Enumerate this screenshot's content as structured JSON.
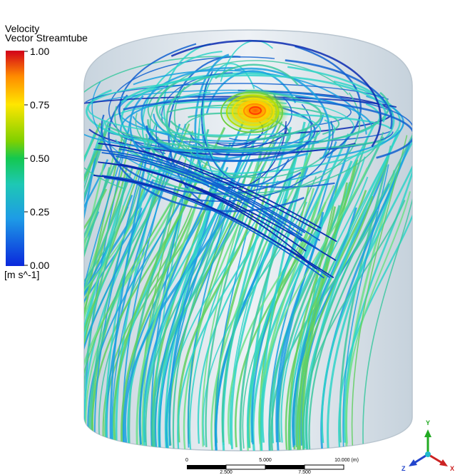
{
  "legend": {
    "title_line1": "Velocity",
    "title_line2": "Vector Streamtube",
    "ticks": [
      "1.00",
      "0.75",
      "0.50",
      "0.25",
      "0.00"
    ],
    "units": "[m s^-1]",
    "colors": [
      "#d2001a",
      "#ff8c00",
      "#ffe600",
      "#7fd000",
      "#14c850",
      "#1ec8b4",
      "#1e9be6",
      "#0a28dc"
    ]
  },
  "scale_bar": {
    "top_labels": [
      "0",
      "5.000",
      "10.000  (m)"
    ],
    "bottom_labels": [
      "2.500",
      "7.500"
    ]
  },
  "triad": {
    "y": "Y",
    "z": "Z",
    "x": "X",
    "colors": {
      "y": "#22aa22",
      "z": "#2244cc",
      "x": "#cc2222",
      "center": "#22bbcc"
    }
  },
  "streamtube_colors": [
    "#2fd4c8",
    "#1aa0e0",
    "#3cc8a0",
    "#60d060",
    "#1060d0",
    "#0a2ab0",
    "#6ce08a",
    "#48b8e8"
  ]
}
